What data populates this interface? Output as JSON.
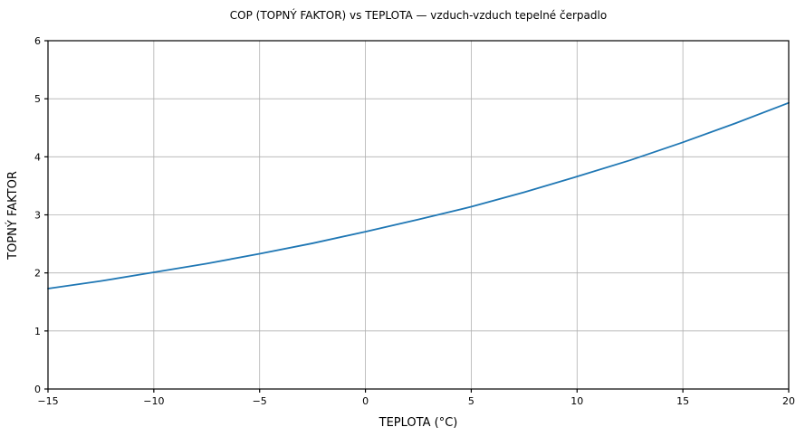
{
  "chart_data": {
    "type": "line",
    "title": "COP (TOPNÝ FAKTOR) vs TEPLOTA — vzduch-vzduch tepelné čerpadlo",
    "xlabel": "TEPLOTA (°C)",
    "ylabel": "TOPNÝ FAKTOR",
    "xlim": [
      -15,
      20
    ],
    "ylim": [
      0,
      6
    ],
    "x_ticks": [
      -15,
      -10,
      -5,
      0,
      5,
      10,
      15,
      20
    ],
    "y_ticks": [
      0,
      1,
      2,
      3,
      4,
      5,
      6
    ],
    "grid": true,
    "legend": "none",
    "colors": {
      "line": "#1f77b4",
      "grid": "#b0b0b0",
      "spine": "#000000",
      "background": "#ffffff"
    },
    "series": [
      {
        "name": "COP vzduch-vzduch tepelné čerpadlo",
        "x": [
          -15,
          -12.5,
          -10,
          -7.5,
          -5,
          -2.5,
          0,
          2.5,
          5,
          7.5,
          10,
          12.5,
          15,
          17.5,
          20
        ],
        "y": [
          1.73,
          1.86,
          2.01,
          2.16,
          2.33,
          2.51,
          2.71,
          2.92,
          3.14,
          3.39,
          3.66,
          3.94,
          4.25,
          4.58,
          4.93
        ]
      }
    ]
  }
}
